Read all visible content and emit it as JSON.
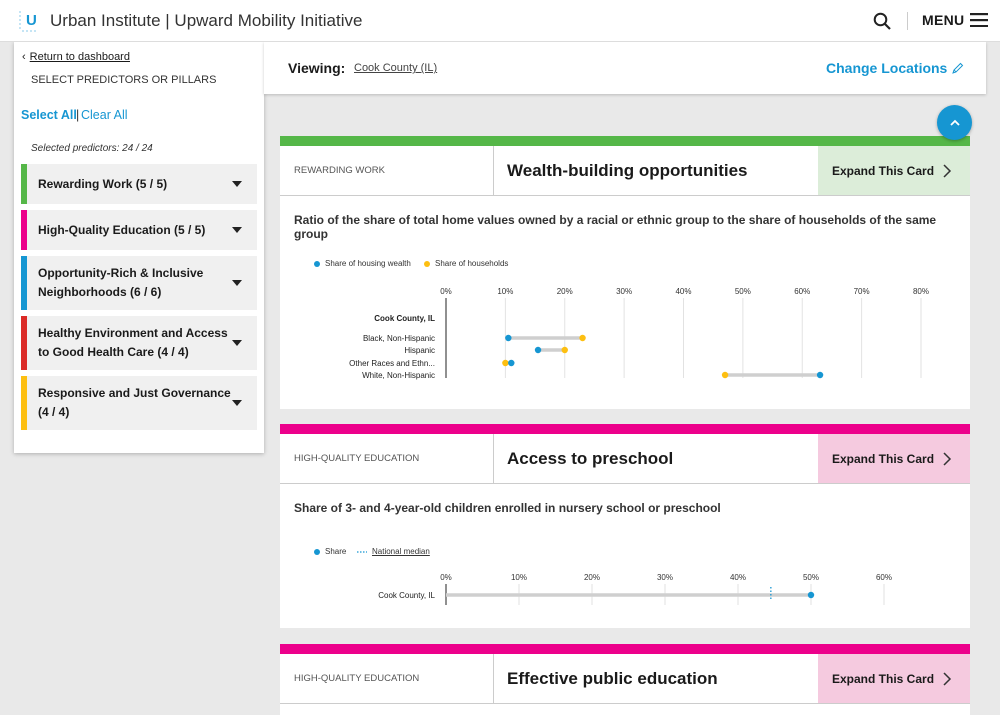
{
  "header": {
    "logo_letter": "U",
    "title": "Urban Institute | Upward Mobility Initiative",
    "menu_label": "MENU"
  },
  "sidebar": {
    "back_link": "Return to dashboard",
    "select_heading": "SELECT PREDICTORS OR PILLARS",
    "select_all": "Select All",
    "separator": "|",
    "clear_all": "Clear All",
    "selected_count": "Selected predictors: 24 / 24",
    "pillars": [
      {
        "line1": "Rewarding Work (5 / 5)",
        "line2": "",
        "color": "#55b748"
      },
      {
        "line1": "High-Quality Education (5 / 5)",
        "line2": "",
        "color": "#ec008b"
      },
      {
        "line1": "Opportunity-Rich & Inclusive",
        "line2": "Neighborhoods (6 / 6)",
        "color": "#1696d2"
      },
      {
        "line1": "Healthy Environment and Access",
        "line2": "to Good Health Care (4 / 4)",
        "color": "#db2b27"
      },
      {
        "line1": "Responsive and Just Governance",
        "line2": "(4 / 4)",
        "color": "#fdbf11"
      }
    ]
  },
  "viewing": {
    "label": "Viewing:",
    "location": "Cook County (IL)",
    "change_label": "Change Locations"
  },
  "cards": [
    {
      "pillar": "REWARDING WORK",
      "title": "Wealth-building opportunities",
      "expand": "Expand This Card",
      "pillar_color": "#55b748",
      "expand_bg": "#dcedd9",
      "description": "Ratio of the share of total home values owned by a racial or ethnic group to the share of households of the same group"
    },
    {
      "pillar": "HIGH-QUALITY EDUCATION",
      "title": "Access to preschool",
      "expand": "Expand This Card",
      "pillar_color": "#ec008b",
      "expand_bg": "#f5cadf",
      "description": "Share of 3- and 4-year-old children enrolled in nursery school or preschool"
    },
    {
      "pillar": "HIGH-QUALITY EDUCATION",
      "title": "Effective public education",
      "expand": "Expand This Card",
      "pillar_color": "#ec008b",
      "expand_bg": "#f5cadf",
      "description": ""
    }
  ],
  "chart_data": [
    {
      "type": "dumbbell",
      "legend": [
        "Share of housing wealth",
        "Share of households"
      ],
      "colors": {
        "housing_wealth": "#1696d2",
        "households": "#fdbf11"
      },
      "x_ticks": [
        "0%",
        "10%",
        "20%",
        "30%",
        "40%",
        "50%",
        "60%",
        "70%",
        "80%"
      ],
      "xlim": [
        0,
        80
      ],
      "group_label": "Cook County, IL",
      "rows": [
        {
          "label": "Black, Non-Hispanic",
          "housing_wealth": 10.5,
          "households": 23
        },
        {
          "label": "Hispanic",
          "housing_wealth": 15.5,
          "households": 20
        },
        {
          "label": "Other Races and Ethn...",
          "housing_wealth": 11,
          "households": 10
        },
        {
          "label": "White, Non-Hispanic",
          "housing_wealth": 63,
          "households": 47
        }
      ]
    },
    {
      "type": "dot",
      "legend": [
        "Share",
        "National median"
      ],
      "colors": {
        "share": "#1696d2",
        "median": "#1696d2"
      },
      "x_ticks": [
        "0%",
        "10%",
        "20%",
        "30%",
        "40%",
        "50%",
        "60%"
      ],
      "xlim": [
        0,
        60
      ],
      "rows": [
        {
          "label": "Cook County, IL",
          "share": 50,
          "national_median": 44.5
        }
      ]
    }
  ]
}
